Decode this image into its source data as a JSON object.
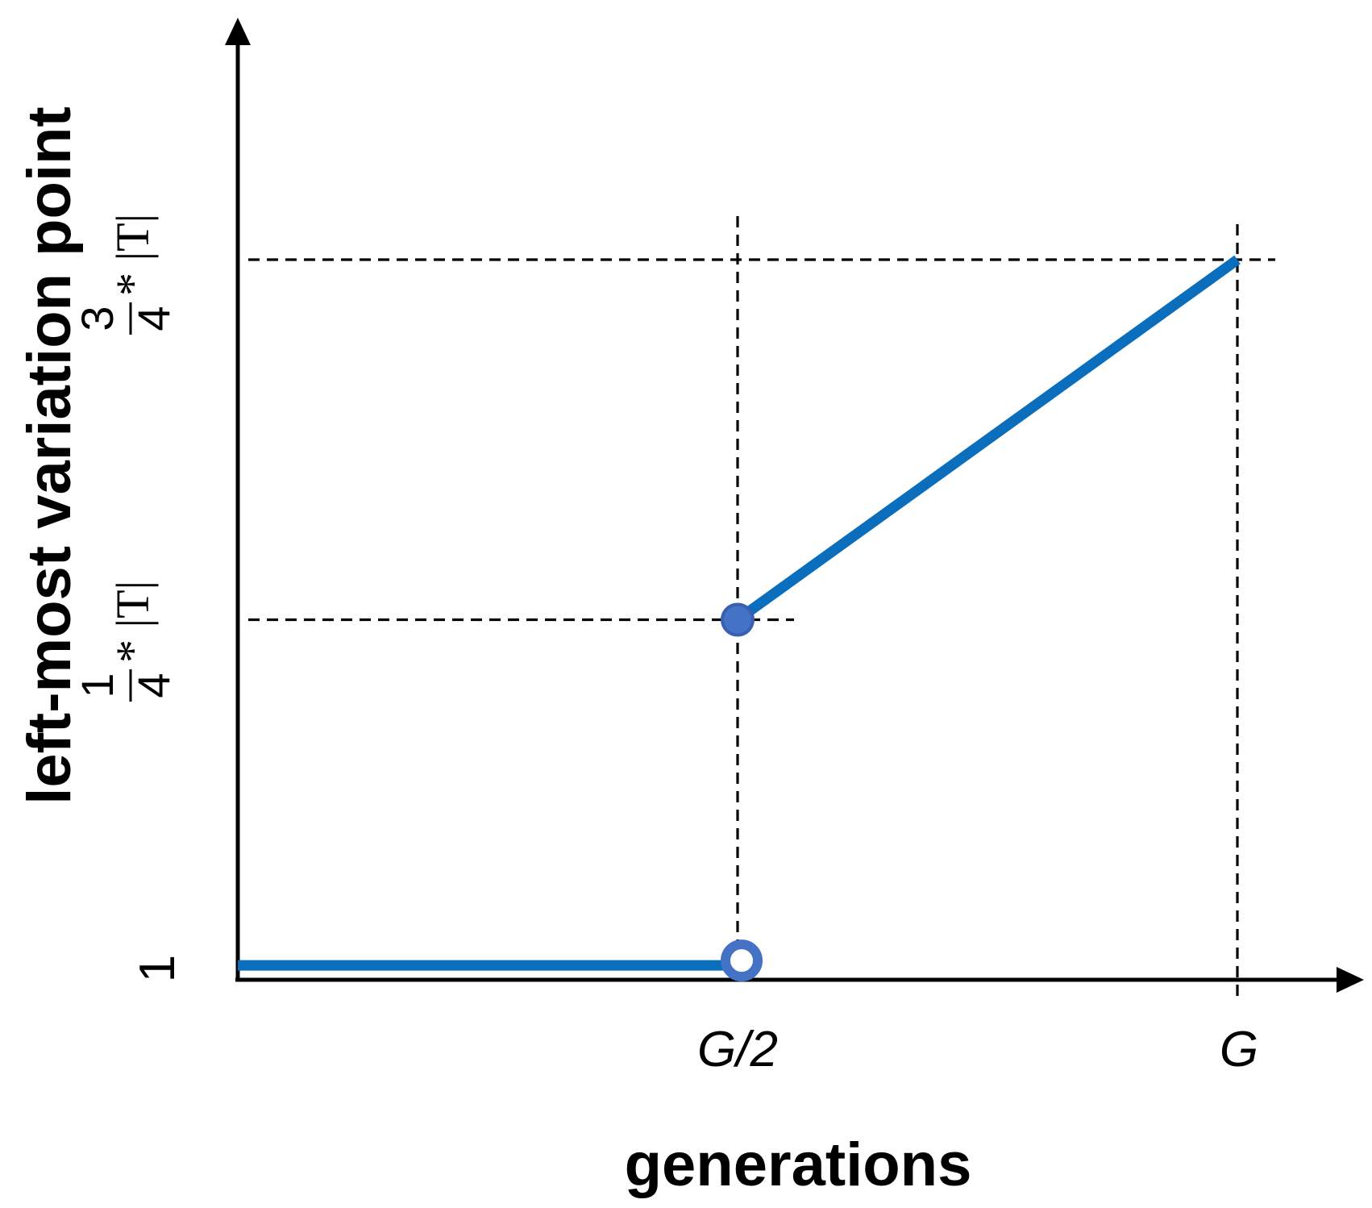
{
  "chart_data": {
    "type": "line",
    "title": "",
    "xlabel": "generations",
    "ylabel": "left-most variation point",
    "x_ticks": [
      "G/2",
      "G"
    ],
    "y_ticks": [
      {
        "text": "1"
      },
      {
        "numerator": "1",
        "denominator": "4",
        "suffix": "* |T|"
      },
      {
        "numerator": "3",
        "denominator": "4",
        "suffix": "* |T|"
      }
    ],
    "x_domain": [
      0,
      1.16
    ],
    "y_domain": [
      0,
      1.0
    ],
    "grid": false,
    "legend": "none",
    "series": [
      {
        "segments": [
          {
            "x": [
              0,
              0.5
            ],
            "y": [
              0.02,
              0.02
            ],
            "end_marker": "open"
          },
          {
            "x": [
              0.5,
              1.0
            ],
            "y": [
              0.5,
              1.0
            ],
            "start_marker": "filled"
          }
        ]
      }
    ],
    "reference_lines": {
      "vertical_x": [
        0.5,
        1.0
      ],
      "horizontal_y": [
        0.5,
        1.0
      ]
    },
    "colors": {
      "line": "#0a6ebd",
      "marker_fill": "#4472c4",
      "marker_stroke": "#3a5fb0",
      "axis": "#000000"
    }
  }
}
